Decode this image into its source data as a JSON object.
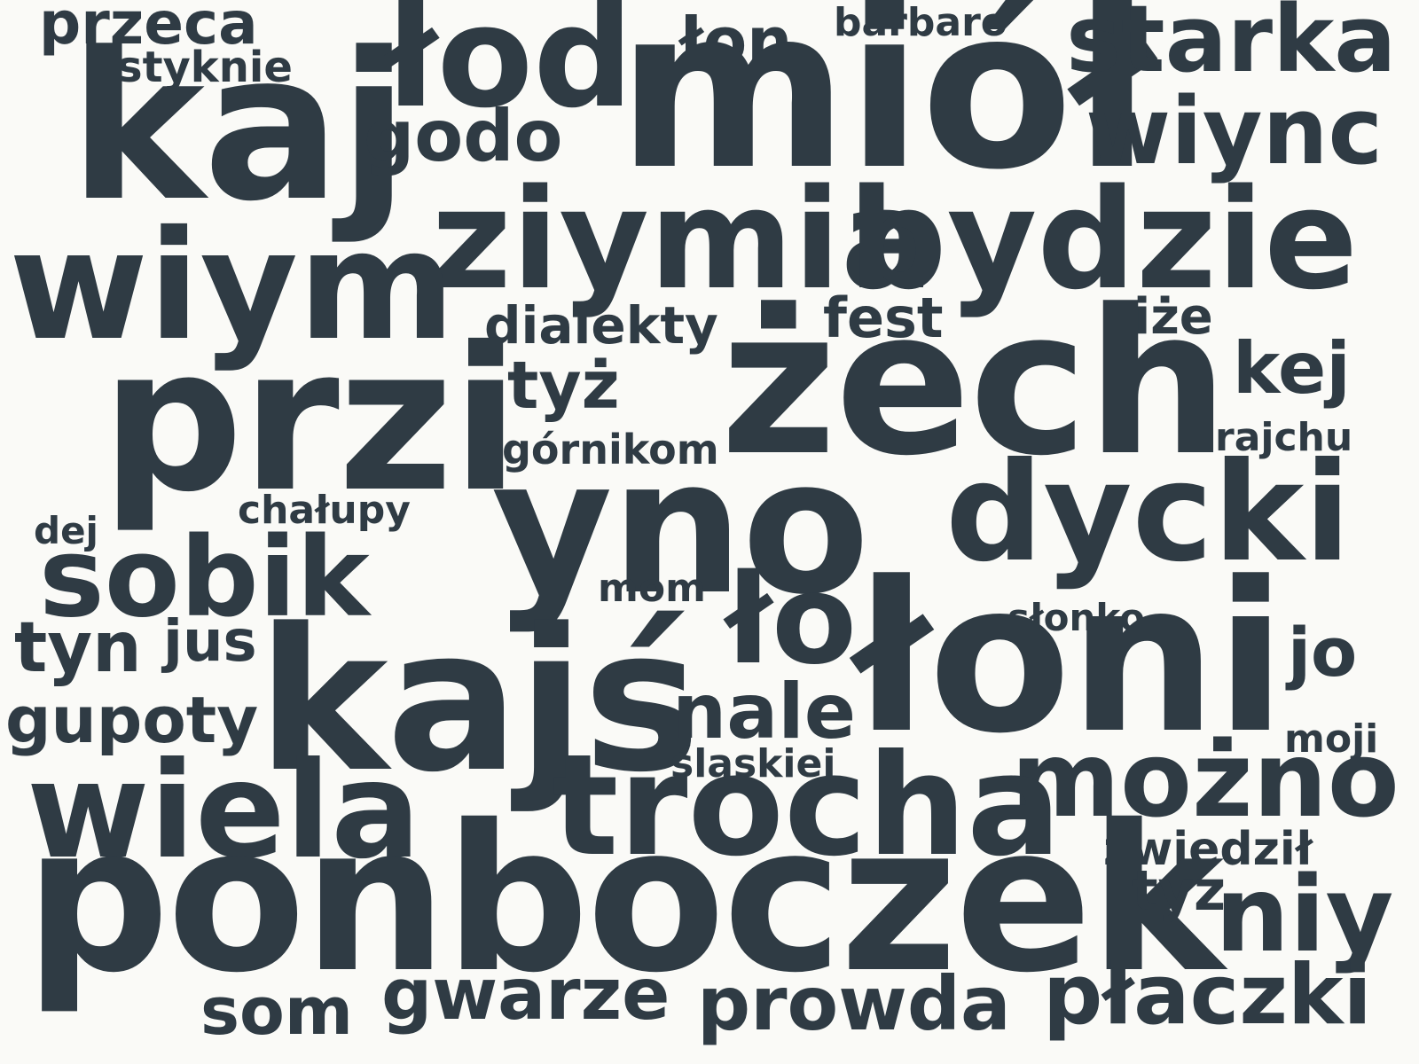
{
  "colors": {
    "background": "#fafaf7",
    "text": "#2f3b44"
  },
  "words": [
    "przeca",
    "styknie",
    "kaj",
    "łod",
    "łon",
    "barbaro",
    "miół",
    "starka",
    "wiync",
    "godo",
    "ziymia",
    "bydzie",
    "wiym",
    "dialekty",
    "fest",
    "iże",
    "przi",
    "tyż",
    "żech",
    "kej",
    "górnikom",
    "rajchu",
    "chałupy",
    "yno",
    "dycki",
    "dej",
    "sobik",
    "mom",
    "tyn",
    "jus",
    "ło",
    "słonko",
    "łoni",
    "jo",
    "kajś",
    "gupoty",
    "nale",
    "moji",
    "śląskiej",
    "możno",
    "wiela",
    "trocha",
    "zwiedził",
    "ponboczek",
    "tyz",
    "niy",
    "gwarze",
    "som",
    "prowda",
    "płaczki"
  ]
}
